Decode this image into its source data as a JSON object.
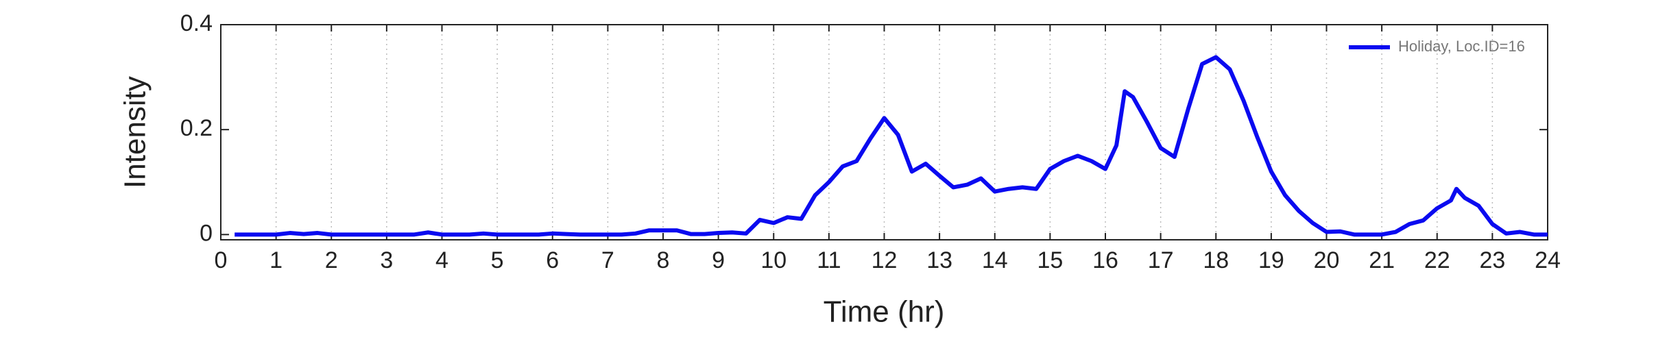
{
  "chart_data": {
    "type": "line",
    "xlabel": "Time (hr)",
    "ylabel": "Intensity",
    "x": [
      0.25,
      0.5,
      0.75,
      1.0,
      1.25,
      1.5,
      1.75,
      2.0,
      2.25,
      2.5,
      2.75,
      3.0,
      3.25,
      3.5,
      3.75,
      4.0,
      4.25,
      4.5,
      4.75,
      5.0,
      5.25,
      5.5,
      5.75,
      6.0,
      6.25,
      6.5,
      6.75,
      7.0,
      7.25,
      7.5,
      7.75,
      8.0,
      8.25,
      8.5,
      8.75,
      9.0,
      9.25,
      9.5,
      9.75,
      10.0,
      10.25,
      10.5,
      10.75,
      11.0,
      11.25,
      11.5,
      11.75,
      12.0,
      12.25,
      12.5,
      12.75,
      13.0,
      13.25,
      13.5,
      13.75,
      14.0,
      14.25,
      14.5,
      14.75,
      15.0,
      15.25,
      15.5,
      15.75,
      16.0,
      16.2,
      16.35,
      16.5,
      16.75,
      17.0,
      17.25,
      17.5,
      17.75,
      18.0,
      18.25,
      18.5,
      18.75,
      19.0,
      19.25,
      19.5,
      19.75,
      20.0,
      20.25,
      20.5,
      20.75,
      21.0,
      21.25,
      21.5,
      21.75,
      22.0,
      22.25,
      22.35,
      22.5,
      22.75,
      23.0,
      23.25,
      23.5,
      23.75,
      24.0
    ],
    "series": [
      {
        "name": "Holiday, Loc.ID=16",
        "color": "#0a0af0",
        "values": [
          0,
          0,
          0,
          0,
          0.003,
          0.001,
          0.003,
          0,
          0,
          0,
          0,
          0,
          0,
          0,
          0.004,
          0,
          0,
          0,
          0.002,
          0,
          0,
          0,
          0,
          0.002,
          0.001,
          0,
          0,
          0,
          0,
          0.002,
          0.008,
          0.008,
          0.008,
          0.001,
          0.001,
          0.003,
          0.004,
          0.002,
          0.028,
          0.022,
          0.033,
          0.03,
          0.075,
          0.1,
          0.13,
          0.14,
          0.183,
          0.222,
          0.19,
          0.12,
          0.135,
          0.112,
          0.09,
          0.095,
          0.107,
          0.082,
          0.087,
          0.09,
          0.087,
          0.125,
          0.14,
          0.15,
          0.14,
          0.125,
          0.17,
          0.273,
          0.262,
          0.215,
          0.165,
          0.148,
          0.24,
          0.325,
          0.338,
          0.315,
          0.255,
          0.185,
          0.12,
          0.075,
          0.045,
          0.022,
          0.005,
          0.006,
          0,
          0,
          0,
          0.005,
          0.02,
          0.027,
          0.05,
          0.065,
          0.087,
          0.07,
          0.055,
          0.02,
          0.002,
          0.005,
          0,
          0
        ]
      }
    ],
    "xlim": [
      0,
      24
    ],
    "xticks": [
      0,
      1,
      2,
      3,
      4,
      5,
      6,
      7,
      8,
      9,
      10,
      11,
      12,
      13,
      14,
      15,
      16,
      17,
      18,
      19,
      20,
      21,
      22,
      23,
      24
    ],
    "ylim": [
      -0.01,
      0.4
    ],
    "yticks": [
      0,
      0.2,
      0.4
    ],
    "grid": true,
    "legend": "upper right"
  }
}
